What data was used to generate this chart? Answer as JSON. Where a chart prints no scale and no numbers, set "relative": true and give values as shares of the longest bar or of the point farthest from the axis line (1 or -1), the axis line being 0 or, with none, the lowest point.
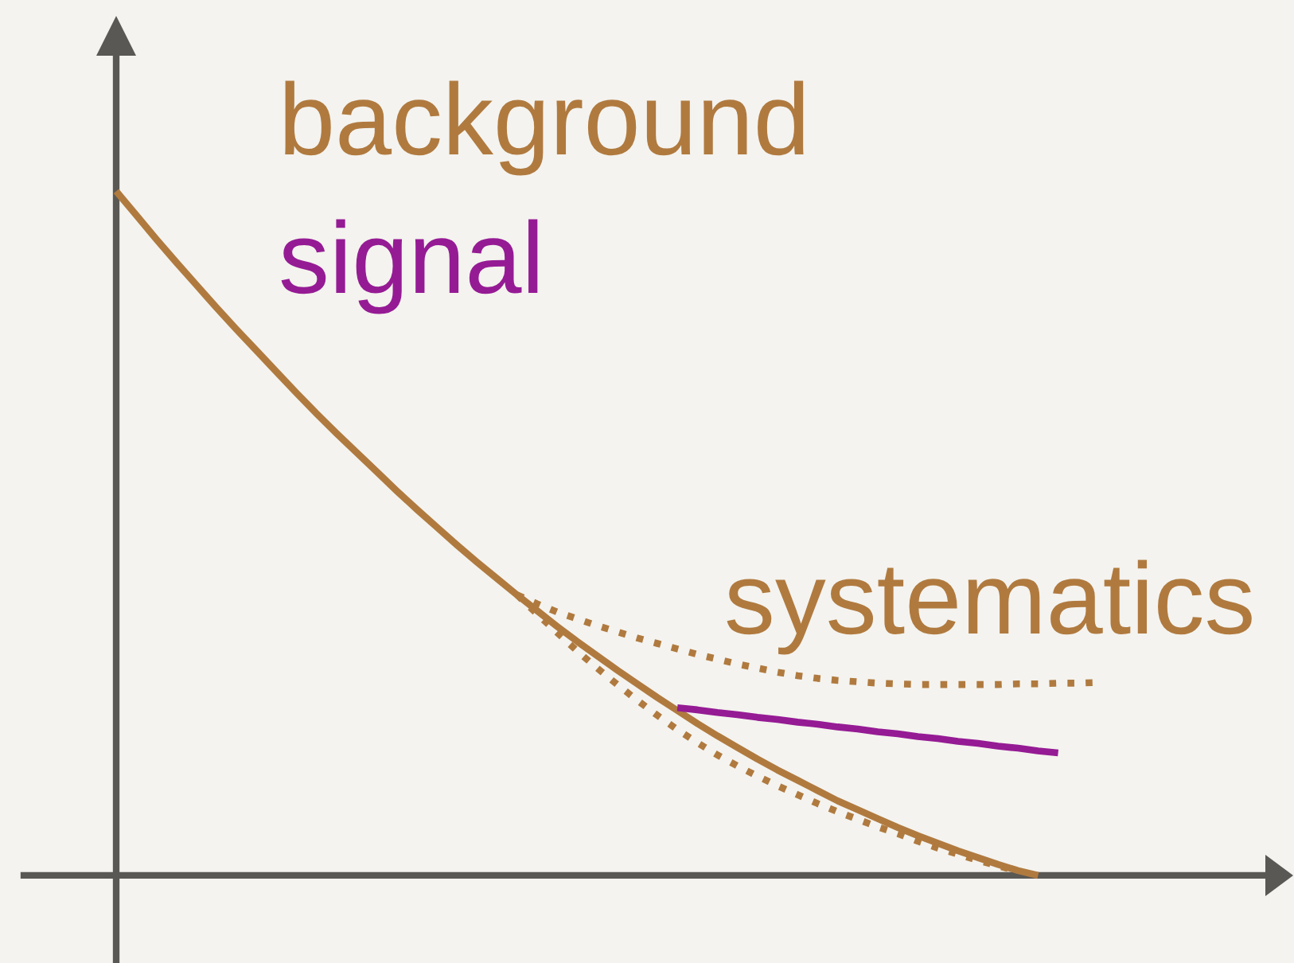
{
  "chart_data": {
    "type": "line",
    "relative": true,
    "categories": [
      null,
      null,
      null,
      null,
      null,
      null,
      null,
      null,
      null,
      null,
      null,
      null,
      null,
      null,
      null,
      null,
      null,
      null,
      null,
      null,
      null,
      null,
      null,
      null,
      null,
      null,
      null,
      null,
      null,
      null,
      null,
      null,
      null,
      null,
      null,
      null,
      null,
      null,
      null,
      null,
      null,
      null,
      null,
      null,
      null,
      null,
      null,
      null,
      null,
      null
    ],
    "series": [
      {
        "name": "background",
        "color": "#b07a3f",
        "line_style": "solid",
        "values": [
          1.0,
          0.965,
          0.93,
          0.896,
          0.863,
          0.83,
          0.798,
          0.767,
          0.736,
          0.705,
          0.675,
          0.646,
          0.618,
          0.59,
          0.562,
          0.535,
          0.509,
          0.483,
          0.458,
          0.434,
          0.41,
          0.387,
          0.364,
          0.342,
          0.321,
          0.3,
          0.28,
          0.26,
          0.241,
          0.222,
          0.204,
          0.187,
          0.17,
          0.154,
          0.139,
          0.124,
          0.109,
          0.096,
          0.083,
          0.07,
          0.058,
          0.047,
          0.036,
          0.026,
          0.016,
          0.007,
          0.0,
          null,
          null,
          null
        ]
      },
      {
        "name": "signal",
        "color": "#951b94",
        "line_style": "solid",
        "values": [
          null,
          null,
          null,
          null,
          null,
          null,
          null,
          null,
          null,
          null,
          null,
          null,
          null,
          null,
          null,
          null,
          null,
          null,
          null,
          null,
          null,
          null,
          null,
          null,
          null,
          null,
          null,
          null,
          0.245,
          0.242,
          0.238,
          0.235,
          0.231,
          0.228,
          0.224,
          0.221,
          0.217,
          0.214,
          0.21,
          0.207,
          0.203,
          0.2,
          0.196,
          0.193,
          0.189,
          0.186,
          0.182,
          0.179,
          null,
          null
        ]
      },
      {
        "name": "systematics",
        "color": "#b07a3f",
        "line_style": "dotted",
        "values": [
          null,
          null,
          null,
          null,
          null,
          null,
          null,
          null,
          null,
          null,
          null,
          null,
          null,
          null,
          null,
          null,
          null,
          null,
          null,
          null,
          0.41,
          0.397,
          0.385,
          0.375,
          0.365,
          0.356,
          0.347,
          0.339,
          0.331,
          0.323,
          0.316,
          0.309,
          0.303,
          0.297,
          0.292,
          0.288,
          0.285,
          0.283,
          0.281,
          0.28,
          0.279,
          0.279,
          0.279,
          0.279,
          0.279,
          0.28,
          0.28,
          0.281,
          0.281,
          0.282
        ]
      },
      {
        "color": "#b07a3f",
        "line_style": "dotted",
        "values": [
          null,
          null,
          null,
          null,
          null,
          null,
          null,
          null,
          null,
          null,
          null,
          null,
          null,
          null,
          null,
          null,
          null,
          null,
          null,
          null,
          0.41,
          0.382,
          0.355,
          0.328,
          0.303,
          0.279,
          0.256,
          0.234,
          0.213,
          0.194,
          0.176,
          0.16,
          0.145,
          0.131,
          0.118,
          0.105,
          0.093,
          0.082,
          0.071,
          0.061,
          0.05,
          0.04,
          0.031,
          0.022,
          0.014,
          0.006,
          null,
          null,
          null,
          null
        ]
      }
    ]
  }
}
